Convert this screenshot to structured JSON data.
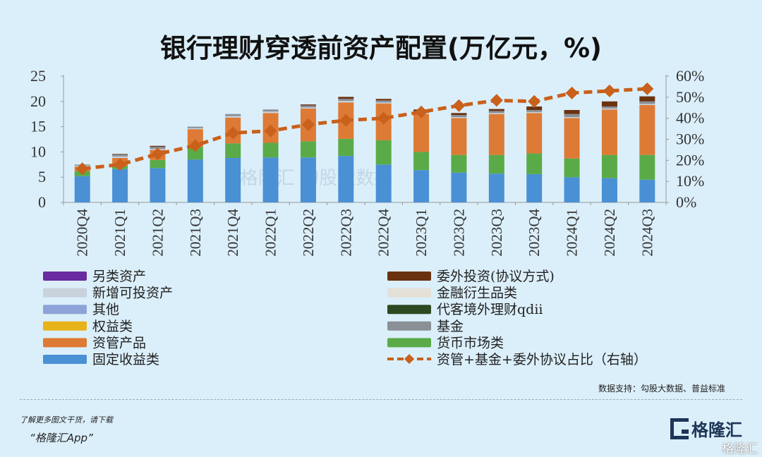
{
  "chart_data": {
    "type": "bar",
    "stacked": true,
    "title": "银行理财穿透前资产配置(万亿元，%)",
    "categories": [
      "2020Q4",
      "2021Q1",
      "2021Q2",
      "2021Q3",
      "2021Q4",
      "2022Q1",
      "2022Q2",
      "2022Q3",
      "2022Q4",
      "2023Q1",
      "2023Q2",
      "2023Q3",
      "2023Q4",
      "2024Q1",
      "2024Q2",
      "2024Q3"
    ],
    "ylim": [
      0,
      25
    ],
    "yticks": [
      "0",
      "5",
      "10",
      "15",
      "20",
      "25"
    ],
    "y2lim": [
      0,
      60
    ],
    "y2ticks": [
      "0%",
      "10%",
      "20%",
      "30%",
      "40%",
      "50%",
      "60%"
    ],
    "grid": false,
    "legend_position": "bottom",
    "series": [
      {
        "name": "固定收益类",
        "color": "#4a90d4",
        "values": [
          5.2,
          6.6,
          6.8,
          8.5,
          8.8,
          8.9,
          8.9,
          9.2,
          7.5,
          6.4,
          5.9,
          5.7,
          5.6,
          5.0,
          4.8,
          4.5
        ]
      },
      {
        "name": "货币市场类",
        "color": "#5aab48",
        "values": [
          1.0,
          0.6,
          1.6,
          2.5,
          2.9,
          2.9,
          3.2,
          3.4,
          4.8,
          3.6,
          3.5,
          3.7,
          4.1,
          3.7,
          4.6,
          4.9
        ]
      },
      {
        "name": "资管产品",
        "color": "#dd7a35",
        "values": [
          0.9,
          1.6,
          2.0,
          3.5,
          5.1,
          5.9,
          6.5,
          7.2,
          7.3,
          7.5,
          7.3,
          8.1,
          8.0,
          8.0,
          9.0,
          9.9
        ]
      },
      {
        "name": "权益类",
        "color": "#e8b21a",
        "values": [
          0,
          0,
          0,
          0,
          0,
          0,
          0,
          0,
          0,
          0,
          0,
          0,
          0,
          0,
          0,
          0
        ]
      },
      {
        "name": "其他",
        "color": "#8da2d8",
        "values": [
          0,
          0,
          0,
          0,
          0,
          0,
          0,
          0,
          0,
          0,
          0,
          0,
          0,
          0,
          0,
          0
        ]
      },
      {
        "name": "新增可投资产",
        "color": "#c8d2da",
        "values": [
          0.2,
          0.3,
          0.2,
          0.2,
          0.3,
          0.3,
          0.2,
          0.3,
          0.2,
          0.2,
          0.2,
          0.2,
          0.2,
          0.2,
          0.2,
          0.2
        ]
      },
      {
        "name": "另类资产",
        "color": "#6a2aa0",
        "values": [
          0,
          0,
          0,
          0,
          0,
          0,
          0,
          0,
          0,
          0,
          0,
          0,
          0,
          0,
          0,
          0
        ]
      },
      {
        "name": "基金",
        "color": "#8a9096",
        "values": [
          0.2,
          0.4,
          0.4,
          0.3,
          0.4,
          0.4,
          0.4,
          0.4,
          0.4,
          0.4,
          0.4,
          0.4,
          0.4,
          0.6,
          0.4,
          0.5
        ]
      },
      {
        "name": "代客境外理财qdii",
        "color": "#2c4a22",
        "values": [
          0,
          0,
          0,
          0,
          0,
          0,
          0,
          0,
          0,
          0,
          0,
          0,
          0,
          0,
          0,
          0
        ]
      },
      {
        "name": "金融衍生品类",
        "color": "#e4e0d8",
        "values": [
          0,
          0,
          0,
          0,
          0,
          0,
          0,
          0,
          0,
          0,
          0,
          0,
          0,
          0,
          0,
          0
        ]
      },
      {
        "name": "委外投资(协议方式)",
        "color": "#6b3210",
        "values": [
          0,
          0.1,
          0.2,
          0,
          0,
          0,
          0.2,
          0.4,
          0.3,
          0.3,
          0.4,
          0.4,
          0.7,
          0.8,
          1.0,
          1.0
        ]
      }
    ],
    "line": {
      "name": "资管+基金+委外协议占比（右轴）",
      "color": "#c9601b",
      "axis": "right",
      "values": [
        16,
        18,
        23,
        27,
        33,
        34,
        37,
        39,
        40,
        43,
        46,
        48.5,
        48,
        52,
        53,
        54
      ]
    },
    "legend_left": [
      "另类资产",
      "新增可投资产",
      "其他",
      "权益类",
      "资管产品",
      "固定收益类"
    ],
    "legend_right": [
      "委外投资(协议方式)",
      "金融衍生品类",
      "代客境外理财qdii",
      "基金",
      "货币市场类",
      "资管+基金+委外协议占比（右轴）"
    ]
  },
  "source": "数据支持：勾股大数据、普益标准",
  "watermark": "格隆汇   勾股大数据",
  "footer": {
    "promo_line1": "了解更多图文干货，请下载",
    "promo_line2": "“格隆汇App”",
    "logo_text": "格隆汇",
    "corner_watermark": "格隆汇"
  }
}
